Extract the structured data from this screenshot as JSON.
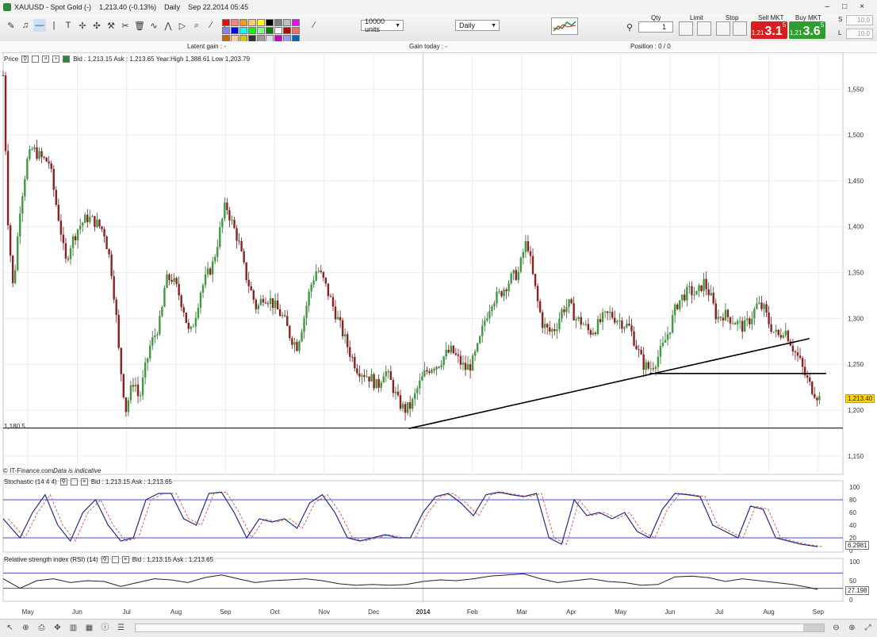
{
  "title_bar": {
    "symbol": "XAUUSD - Spot Gold (-)",
    "price": "1,213.40 (-0.13%)",
    "period": "Daily",
    "datetime": "Sep 22.2014 05:45",
    "win_controls": [
      "–",
      "□",
      "×"
    ]
  },
  "toolbar": {
    "units": "10000 units",
    "interval": "Daily",
    "qty_label": "Qty",
    "qty_value": "1",
    "limit_label": "Limit",
    "stop_label": "Stop",
    "sell_label": "Sell MKT",
    "sell_small": "1,21",
    "sell_big": "3.1",
    "sell_sup": "5",
    "buy_label": "Buy MKT",
    "buy_small": "1,21",
    "buy_big": "3.6",
    "buy_sup": "5",
    "s_label": "S",
    "l_label": "L",
    "s_value": "10.0",
    "l_value": "10.0",
    "palette": [
      "#ff0000",
      "#ff8080",
      "#ff9900",
      "#ffcc66",
      "#ffff00",
      "#000000",
      "#808080",
      "#c0c0c0",
      "#ff00ff",
      "#8080ff",
      "#0000ff",
      "#00ffff",
      "#00ff00",
      "#80ff80",
      "#008000",
      "#ffffff",
      "#c00000",
      "#ff6666",
      "#cc6600",
      "#ffcc99",
      "#cccc00",
      "#333333",
      "#999999",
      "#e0e0e0",
      "#cc00cc",
      "#9999ff",
      "#0066cc",
      "#66ffff",
      "#33cc33",
      "#99ff99",
      "#006600",
      "#f0f0f0"
    ]
  },
  "info_bar": {
    "latent": "Latent gain : -",
    "gain_today": "Gain today : -",
    "position": "Position : 0 / 0"
  },
  "price_pane": {
    "label": "Price",
    "bidask": "Bid : 1,213.15 Ask : 1,213.65 Year:High 1,388.61 Low 1,203.79",
    "support_label": "1,180.5",
    "current_price": "1,213.40",
    "footer": "© IT-Finance.com",
    "footer_note": "Data is indicative"
  },
  "stoch_pane": {
    "label": "Stochastic (14 4 4)",
    "bidask": "Bid : 1,213.15 Ask : 1,213.65",
    "current": "6.2981",
    "ticks": [
      "100",
      "80",
      "60",
      "40",
      "20",
      "0"
    ]
  },
  "rsi_pane": {
    "label": "Relative strength index (RSI) (14)",
    "bidask": "Bid : 1,213.15 Ask : 1,213.65",
    "current": "27.198",
    "ticks": [
      "100",
      "50",
      "0"
    ]
  },
  "chart_data": {
    "type": "candlestick",
    "instrument": "XAUUSD",
    "yticks": [
      1550,
      1500,
      1450,
      1400,
      1350,
      1300,
      1250,
      1200,
      1150
    ],
    "ylim": [
      1130,
      1590
    ],
    "x_labels": [
      "May",
      "Jun",
      "Jul",
      "Aug",
      "Sep",
      "Oct",
      "Nov",
      "Dec",
      "2014",
      "Feb",
      "Mar",
      "Apr",
      "May",
      "Jun",
      "Jul",
      "Aug",
      "Sep"
    ],
    "trendlines": [
      {
        "from": [
          0.483,
          1180
        ],
        "to": [
          0.96,
          1278
        ]
      },
      {
        "from": [
          0.77,
          1240
        ],
        "to": [
          0.98,
          1240
        ]
      },
      {
        "from": [
          0,
          1180.5
        ],
        "to": [
          1,
          1180.5
        ]
      }
    ],
    "close_path": [
      [
        0.0,
        1565
      ],
      [
        0.006,
        1400
      ],
      [
        0.012,
        1330
      ],
      [
        0.02,
        1420
      ],
      [
        0.028,
        1470
      ],
      [
        0.035,
        1485
      ],
      [
        0.045,
        1475
      ],
      [
        0.055,
        1470
      ],
      [
        0.062,
        1430
      ],
      [
        0.068,
        1400
      ],
      [
        0.074,
        1360
      ],
      [
        0.08,
        1380
      ],
      [
        0.09,
        1400
      ],
      [
        0.1,
        1410
      ],
      [
        0.11,
        1405
      ],
      [
        0.12,
        1395
      ],
      [
        0.128,
        1360
      ],
      [
        0.134,
        1310
      ],
      [
        0.138,
        1260
      ],
      [
        0.142,
        1230
      ],
      [
        0.146,
        1200
      ],
      [
        0.15,
        1215
      ],
      [
        0.156,
        1235
      ],
      [
        0.162,
        1210
      ],
      [
        0.168,
        1240
      ],
      [
        0.175,
        1270
      ],
      [
        0.182,
        1285
      ],
      [
        0.188,
        1300
      ],
      [
        0.193,
        1340
      ],
      [
        0.2,
        1345
      ],
      [
        0.208,
        1330
      ],
      [
        0.215,
        1310
      ],
      [
        0.222,
        1280
      ],
      [
        0.228,
        1300
      ],
      [
        0.235,
        1330
      ],
      [
        0.242,
        1345
      ],
      [
        0.25,
        1360
      ],
      [
        0.258,
        1395
      ],
      [
        0.265,
        1425
      ],
      [
        0.272,
        1405
      ],
      [
        0.28,
        1385
      ],
      [
        0.288,
        1350
      ],
      [
        0.295,
        1330
      ],
      [
        0.302,
        1310
      ],
      [
        0.31,
        1325
      ],
      [
        0.318,
        1320
      ],
      [
        0.326,
        1310
      ],
      [
        0.334,
        1300
      ],
      [
        0.342,
        1280
      ],
      [
        0.35,
        1270
      ],
      [
        0.358,
        1300
      ],
      [
        0.366,
        1335
      ],
      [
        0.374,
        1355
      ],
      [
        0.382,
        1340
      ],
      [
        0.39,
        1320
      ],
      [
        0.398,
        1300
      ],
      [
        0.406,
        1280
      ],
      [
        0.414,
        1260
      ],
      [
        0.422,
        1245
      ],
      [
        0.43,
        1240
      ],
      [
        0.438,
        1235
      ],
      [
        0.446,
        1225
      ],
      [
        0.454,
        1245
      ],
      [
        0.462,
        1230
      ],
      [
        0.47,
        1210
      ],
      [
        0.478,
        1200
      ],
      [
        0.486,
        1205
      ],
      [
        0.494,
        1225
      ],
      [
        0.502,
        1240
      ],
      [
        0.51,
        1248
      ],
      [
        0.518,
        1250
      ],
      [
        0.526,
        1260
      ],
      [
        0.534,
        1265
      ],
      [
        0.542,
        1255
      ],
      [
        0.55,
        1245
      ],
      [
        0.558,
        1250
      ],
      [
        0.566,
        1270
      ],
      [
        0.574,
        1300
      ],
      [
        0.582,
        1320
      ],
      [
        0.59,
        1325
      ],
      [
        0.598,
        1335
      ],
      [
        0.606,
        1345
      ],
      [
        0.614,
        1350
      ],
      [
        0.62,
        1375
      ],
      [
        0.624,
        1385
      ],
      [
        0.63,
        1350
      ],
      [
        0.636,
        1320
      ],
      [
        0.642,
        1295
      ],
      [
        0.65,
        1285
      ],
      [
        0.658,
        1290
      ],
      [
        0.666,
        1310
      ],
      [
        0.674,
        1315
      ],
      [
        0.682,
        1300
      ],
      [
        0.69,
        1295
      ],
      [
        0.698,
        1285
      ],
      [
        0.706,
        1290
      ],
      [
        0.714,
        1300
      ],
      [
        0.722,
        1305
      ],
      [
        0.73,
        1300
      ],
      [
        0.738,
        1295
      ],
      [
        0.746,
        1290
      ],
      [
        0.754,
        1270
      ],
      [
        0.762,
        1250
      ],
      [
        0.77,
        1245
      ],
      [
        0.778,
        1255
      ],
      [
        0.786,
        1270
      ],
      [
        0.794,
        1290
      ],
      [
        0.802,
        1315
      ],
      [
        0.81,
        1325
      ],
      [
        0.818,
        1330
      ],
      [
        0.826,
        1325
      ],
      [
        0.834,
        1340
      ],
      [
        0.842,
        1325
      ],
      [
        0.85,
        1300
      ],
      [
        0.858,
        1305
      ],
      [
        0.866,
        1300
      ],
      [
        0.874,
        1295
      ],
      [
        0.882,
        1290
      ],
      [
        0.89,
        1300
      ],
      [
        0.898,
        1315
      ],
      [
        0.906,
        1310
      ],
      [
        0.912,
        1295
      ],
      [
        0.918,
        1285
      ],
      [
        0.924,
        1280
      ],
      [
        0.93,
        1290
      ],
      [
        0.936,
        1278
      ],
      [
        0.942,
        1265
      ],
      [
        0.948,
        1255
      ],
      [
        0.954,
        1240
      ],
      [
        0.96,
        1228
      ],
      [
        0.966,
        1220
      ],
      [
        0.972,
        1213
      ]
    ],
    "stoch_path": [
      [
        0,
        50
      ],
      [
        0.02,
        20
      ],
      [
        0.035,
        60
      ],
      [
        0.05,
        88
      ],
      [
        0.065,
        40
      ],
      [
        0.08,
        15
      ],
      [
        0.095,
        60
      ],
      [
        0.11,
        80
      ],
      [
        0.125,
        40
      ],
      [
        0.14,
        15
      ],
      [
        0.155,
        20
      ],
      [
        0.17,
        80
      ],
      [
        0.185,
        90
      ],
      [
        0.2,
        90
      ],
      [
        0.215,
        50
      ],
      [
        0.23,
        40
      ],
      [
        0.245,
        90
      ],
      [
        0.26,
        92
      ],
      [
        0.275,
        60
      ],
      [
        0.29,
        20
      ],
      [
        0.305,
        50
      ],
      [
        0.32,
        45
      ],
      [
        0.335,
        50
      ],
      [
        0.35,
        35
      ],
      [
        0.365,
        75
      ],
      [
        0.38,
        88
      ],
      [
        0.395,
        60
      ],
      [
        0.41,
        20
      ],
      [
        0.425,
        15
      ],
      [
        0.44,
        20
      ],
      [
        0.455,
        25
      ],
      [
        0.47,
        20
      ],
      [
        0.485,
        20
      ],
      [
        0.5,
        60
      ],
      [
        0.515,
        85
      ],
      [
        0.53,
        90
      ],
      [
        0.545,
        75
      ],
      [
        0.56,
        55
      ],
      [
        0.575,
        88
      ],
      [
        0.59,
        92
      ],
      [
        0.605,
        88
      ],
      [
        0.62,
        85
      ],
      [
        0.635,
        90
      ],
      [
        0.65,
        20
      ],
      [
        0.665,
        10
      ],
      [
        0.68,
        80
      ],
      [
        0.695,
        55
      ],
      [
        0.71,
        60
      ],
      [
        0.725,
        50
      ],
      [
        0.74,
        60
      ],
      [
        0.755,
        30
      ],
      [
        0.77,
        20
      ],
      [
        0.785,
        65
      ],
      [
        0.8,
        90
      ],
      [
        0.815,
        88
      ],
      [
        0.83,
        85
      ],
      [
        0.845,
        40
      ],
      [
        0.86,
        30
      ],
      [
        0.875,
        20
      ],
      [
        0.89,
        70
      ],
      [
        0.905,
        65
      ],
      [
        0.92,
        20
      ],
      [
        0.935,
        15
      ],
      [
        0.95,
        10
      ],
      [
        0.97,
        6
      ]
    ],
    "rsi_path": [
      [
        0,
        55
      ],
      [
        0.02,
        30
      ],
      [
        0.04,
        50
      ],
      [
        0.06,
        55
      ],
      [
        0.08,
        45
      ],
      [
        0.1,
        50
      ],
      [
        0.12,
        48
      ],
      [
        0.14,
        35
      ],
      [
        0.16,
        45
      ],
      [
        0.18,
        55
      ],
      [
        0.2,
        52
      ],
      [
        0.22,
        45
      ],
      [
        0.24,
        58
      ],
      [
        0.26,
        65
      ],
      [
        0.28,
        55
      ],
      [
        0.3,
        45
      ],
      [
        0.32,
        50
      ],
      [
        0.34,
        52
      ],
      [
        0.36,
        55
      ],
      [
        0.38,
        50
      ],
      [
        0.4,
        42
      ],
      [
        0.42,
        38
      ],
      [
        0.44,
        40
      ],
      [
        0.46,
        38
      ],
      [
        0.48,
        40
      ],
      [
        0.5,
        48
      ],
      [
        0.52,
        52
      ],
      [
        0.54,
        50
      ],
      [
        0.56,
        55
      ],
      [
        0.58,
        62
      ],
      [
        0.6,
        65
      ],
      [
        0.62,
        68
      ],
      [
        0.64,
        55
      ],
      [
        0.66,
        45
      ],
      [
        0.68,
        50
      ],
      [
        0.7,
        55
      ],
      [
        0.72,
        48
      ],
      [
        0.74,
        45
      ],
      [
        0.76,
        38
      ],
      [
        0.78,
        40
      ],
      [
        0.8,
        60
      ],
      [
        0.82,
        62
      ],
      [
        0.84,
        58
      ],
      [
        0.86,
        48
      ],
      [
        0.88,
        55
      ],
      [
        0.9,
        50
      ],
      [
        0.92,
        45
      ],
      [
        0.94,
        40
      ],
      [
        0.96,
        32
      ],
      [
        0.97,
        27
      ]
    ]
  }
}
